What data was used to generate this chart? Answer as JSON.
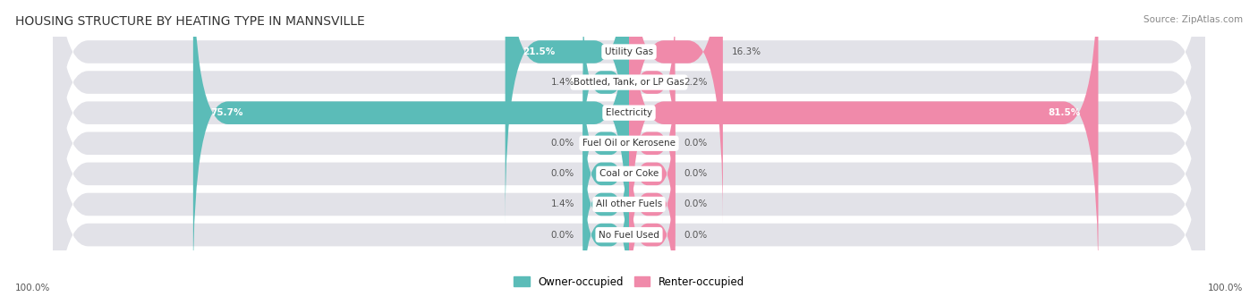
{
  "title": "HOUSING STRUCTURE BY HEATING TYPE IN MANNSVILLE",
  "source": "Source: ZipAtlas.com",
  "categories": [
    "Utility Gas",
    "Bottled, Tank, or LP Gas",
    "Electricity",
    "Fuel Oil or Kerosene",
    "Coal or Coke",
    "All other Fuels",
    "No Fuel Used"
  ],
  "owner_values": [
    21.5,
    1.4,
    75.7,
    0.0,
    0.0,
    1.4,
    0.0
  ],
  "renter_values": [
    16.3,
    2.2,
    81.5,
    0.0,
    0.0,
    0.0,
    0.0
  ],
  "owner_color": "#5bbcb8",
  "renter_color": "#f08aaa",
  "bg_color": "#f5f5f5",
  "bar_bg_color": "#e2e2e8",
  "axis_label_left": "100.0%",
  "axis_label_right": "100.0%",
  "max_value": 100.0,
  "legend_owner": "Owner-occupied",
  "legend_renter": "Renter-occupied",
  "min_bar_pct": 8.0
}
